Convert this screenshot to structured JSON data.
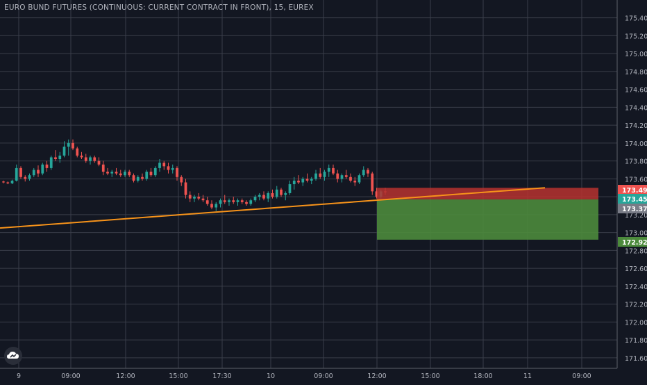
{
  "title": "EURO BUND FUTURES (CONTINUOUS: CURRENT CONTRACT IN FRONT), 15, EUREX",
  "logo_icon": "tradingview-cloud-icon",
  "colors": {
    "background": "#131722",
    "grid": "#3a3e4a",
    "up": "#26a69a",
    "down": "#ef5350",
    "trendline": "#f7931a",
    "target_zone": "#4c8a3c",
    "stop_zone": "#b7322f",
    "text": "#b2b5be"
  },
  "chart_data": {
    "type": "candlestick",
    "ylim": [
      171.56,
      175.42
    ],
    "y_ticks": [
      "175.40",
      "175.20",
      "175.00",
      "174.80",
      "174.60",
      "174.40",
      "174.20",
      "174.00",
      "173.80",
      "173.60",
      "173.40",
      "173.20",
      "173.00",
      "172.80",
      "172.60",
      "172.40",
      "172.20",
      "172.00",
      "171.80",
      "171.60"
    ],
    "x_ticks": [
      "9",
      "09:00",
      "12:00",
      "15:00",
      "17:30",
      "10",
      "09:00",
      "12:00",
      "15:00",
      "18:00",
      "11",
      "09:00"
    ],
    "price_labels": [
      {
        "value": "173.49",
        "color": "#ef5350"
      },
      {
        "value": "173.45",
        "color": "#26a69a"
      },
      {
        "value": "173.37",
        "color": "#787b86"
      },
      {
        "value": "172.92",
        "color": "#4c8a3c"
      }
    ],
    "candles": [
      [
        173.57,
        173.58,
        173.55,
        173.56
      ],
      [
        173.56,
        173.57,
        173.54,
        173.55
      ],
      [
        173.55,
        173.59,
        173.54,
        173.58
      ],
      [
        173.58,
        173.76,
        173.57,
        173.72
      ],
      [
        173.72,
        173.74,
        173.6,
        173.62
      ],
      [
        173.62,
        173.64,
        173.57,
        173.6
      ],
      [
        173.6,
        173.66,
        173.58,
        173.64
      ],
      [
        173.64,
        173.72,
        173.62,
        173.7
      ],
      [
        173.7,
        173.75,
        173.62,
        173.66
      ],
      [
        173.66,
        173.78,
        173.64,
        173.76
      ],
      [
        173.76,
        173.8,
        173.68,
        173.72
      ],
      [
        173.72,
        173.86,
        173.7,
        173.84
      ],
      [
        173.84,
        173.92,
        173.8,
        173.82
      ],
      [
        173.82,
        173.9,
        173.78,
        173.86
      ],
      [
        173.86,
        174.02,
        173.84,
        173.96
      ],
      [
        173.96,
        174.04,
        173.86,
        174.0
      ],
      [
        174.0,
        174.04,
        173.92,
        173.94
      ],
      [
        173.94,
        173.96,
        173.84,
        173.86
      ],
      [
        173.86,
        173.9,
        173.82,
        173.84
      ],
      [
        173.84,
        173.88,
        173.78,
        173.8
      ],
      [
        173.8,
        173.86,
        173.76,
        173.84
      ],
      [
        173.84,
        173.86,
        173.78,
        173.8
      ],
      [
        173.8,
        173.84,
        173.74,
        173.76
      ],
      [
        173.76,
        173.8,
        173.64,
        173.68
      ],
      [
        173.68,
        173.72,
        173.64,
        173.66
      ],
      [
        173.66,
        173.7,
        173.62,
        173.68
      ],
      [
        173.68,
        173.72,
        173.64,
        173.66
      ],
      [
        173.66,
        173.7,
        173.62,
        173.64
      ],
      [
        173.64,
        173.7,
        173.62,
        173.68
      ],
      [
        173.68,
        173.7,
        173.62,
        173.64
      ],
      [
        173.64,
        173.66,
        173.56,
        173.58
      ],
      [
        173.58,
        173.64,
        173.56,
        173.62
      ],
      [
        173.62,
        173.66,
        173.58,
        173.6
      ],
      [
        173.6,
        173.7,
        173.58,
        173.68
      ],
      [
        173.68,
        173.72,
        173.62,
        173.64
      ],
      [
        173.64,
        173.74,
        173.62,
        173.72
      ],
      [
        173.72,
        173.82,
        173.68,
        173.78
      ],
      [
        173.78,
        173.8,
        173.7,
        173.74
      ],
      [
        173.74,
        173.78,
        173.66,
        173.7
      ],
      [
        173.7,
        173.76,
        173.66,
        173.72
      ],
      [
        173.72,
        173.74,
        173.58,
        173.62
      ],
      [
        173.62,
        173.64,
        173.52,
        173.56
      ],
      [
        173.56,
        173.6,
        173.38,
        173.42
      ],
      [
        173.42,
        173.46,
        173.34,
        173.38
      ],
      [
        173.38,
        173.42,
        173.34,
        173.4
      ],
      [
        173.4,
        173.44,
        173.36,
        173.38
      ],
      [
        173.38,
        173.42,
        173.34,
        173.36
      ],
      [
        173.36,
        173.4,
        173.3,
        173.32
      ],
      [
        173.32,
        173.36,
        173.26,
        173.28
      ],
      [
        173.28,
        173.34,
        173.24,
        173.32
      ],
      [
        173.32,
        173.38,
        173.28,
        173.36
      ],
      [
        173.36,
        173.42,
        173.32,
        173.34
      ],
      [
        173.34,
        173.38,
        173.3,
        173.36
      ],
      [
        173.36,
        173.4,
        173.32,
        173.34
      ],
      [
        173.34,
        173.38,
        173.3,
        173.36
      ],
      [
        173.36,
        173.38,
        173.32,
        173.34
      ],
      [
        173.34,
        173.36,
        173.3,
        173.32
      ],
      [
        173.32,
        173.38,
        173.3,
        173.36
      ],
      [
        173.36,
        173.42,
        173.34,
        173.4
      ],
      [
        173.4,
        173.44,
        173.36,
        173.42
      ],
      [
        173.42,
        173.46,
        173.36,
        173.38
      ],
      [
        173.38,
        173.46,
        173.34,
        173.44
      ],
      [
        173.44,
        173.48,
        173.38,
        173.4
      ],
      [
        173.4,
        173.52,
        173.38,
        173.48
      ],
      [
        173.48,
        173.5,
        173.4,
        173.42
      ],
      [
        173.42,
        173.46,
        173.36,
        173.44
      ],
      [
        173.44,
        173.58,
        173.42,
        173.54
      ],
      [
        173.54,
        173.62,
        173.48,
        173.58
      ],
      [
        173.58,
        173.64,
        173.54,
        173.56
      ],
      [
        173.56,
        173.62,
        173.52,
        173.6
      ],
      [
        173.6,
        173.66,
        173.56,
        173.58
      ],
      [
        173.58,
        173.62,
        173.54,
        173.6
      ],
      [
        173.6,
        173.7,
        173.58,
        173.66
      ],
      [
        173.66,
        173.72,
        173.6,
        173.62
      ],
      [
        173.62,
        173.7,
        173.58,
        173.68
      ],
      [
        173.68,
        173.76,
        173.62,
        173.72
      ],
      [
        173.72,
        173.76,
        173.64,
        173.66
      ],
      [
        173.66,
        173.7,
        173.56,
        173.6
      ],
      [
        173.6,
        173.66,
        173.56,
        173.64
      ],
      [
        173.64,
        173.7,
        173.6,
        173.62
      ],
      [
        173.62,
        173.66,
        173.56,
        173.58
      ],
      [
        173.58,
        173.62,
        173.52,
        173.56
      ],
      [
        173.56,
        173.66,
        173.54,
        173.64
      ],
      [
        173.64,
        173.74,
        173.62,
        173.7
      ],
      [
        173.7,
        173.72,
        173.62,
        173.66
      ],
      [
        173.66,
        173.68,
        173.42,
        173.46
      ],
      [
        173.46,
        173.5,
        173.38,
        173.4
      ],
      [
        173.4,
        173.48,
        173.38,
        173.46
      ],
      [
        173.46,
        173.5,
        173.42,
        173.45
      ]
    ],
    "trendline": {
      "x": [
        0,
        785
      ],
      "y": [
        173.05,
        173.5
      ]
    },
    "trendline_continuation_x": 870,
    "position": {
      "x_start": 543,
      "x_end": 862,
      "entry": 173.37,
      "stop": 173.5,
      "target": 172.92
    }
  }
}
